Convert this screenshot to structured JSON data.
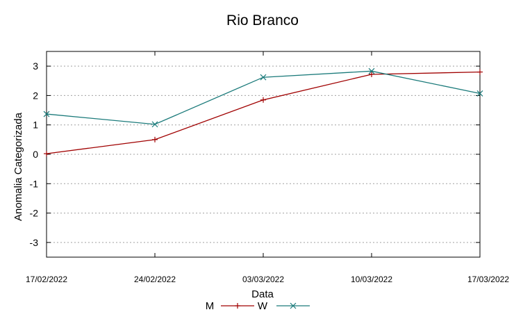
{
  "chart_data": {
    "type": "line",
    "title": "Rio Branco",
    "xlabel": "Data",
    "ylabel": "Anomalia Categorizada",
    "x": [
      "17/02/2022",
      "24/02/2022",
      "03/03/2022",
      "10/03/2022",
      "17/03/2022"
    ],
    "ylim": [
      -3.5,
      3.5
    ],
    "yticks": [
      -3,
      -2,
      -1,
      0,
      1,
      2,
      3
    ],
    "grid": true,
    "legend_position": "bottom",
    "series": [
      {
        "name": "M",
        "color": "#a00000",
        "marker": "plus",
        "values": [
          0.02,
          0.5,
          1.85,
          2.72,
          2.8
        ]
      },
      {
        "name": "W",
        "color": "#1a7a7a",
        "marker": "cross",
        "values": [
          1.37,
          1.02,
          2.62,
          2.83,
          2.07
        ]
      }
    ]
  }
}
